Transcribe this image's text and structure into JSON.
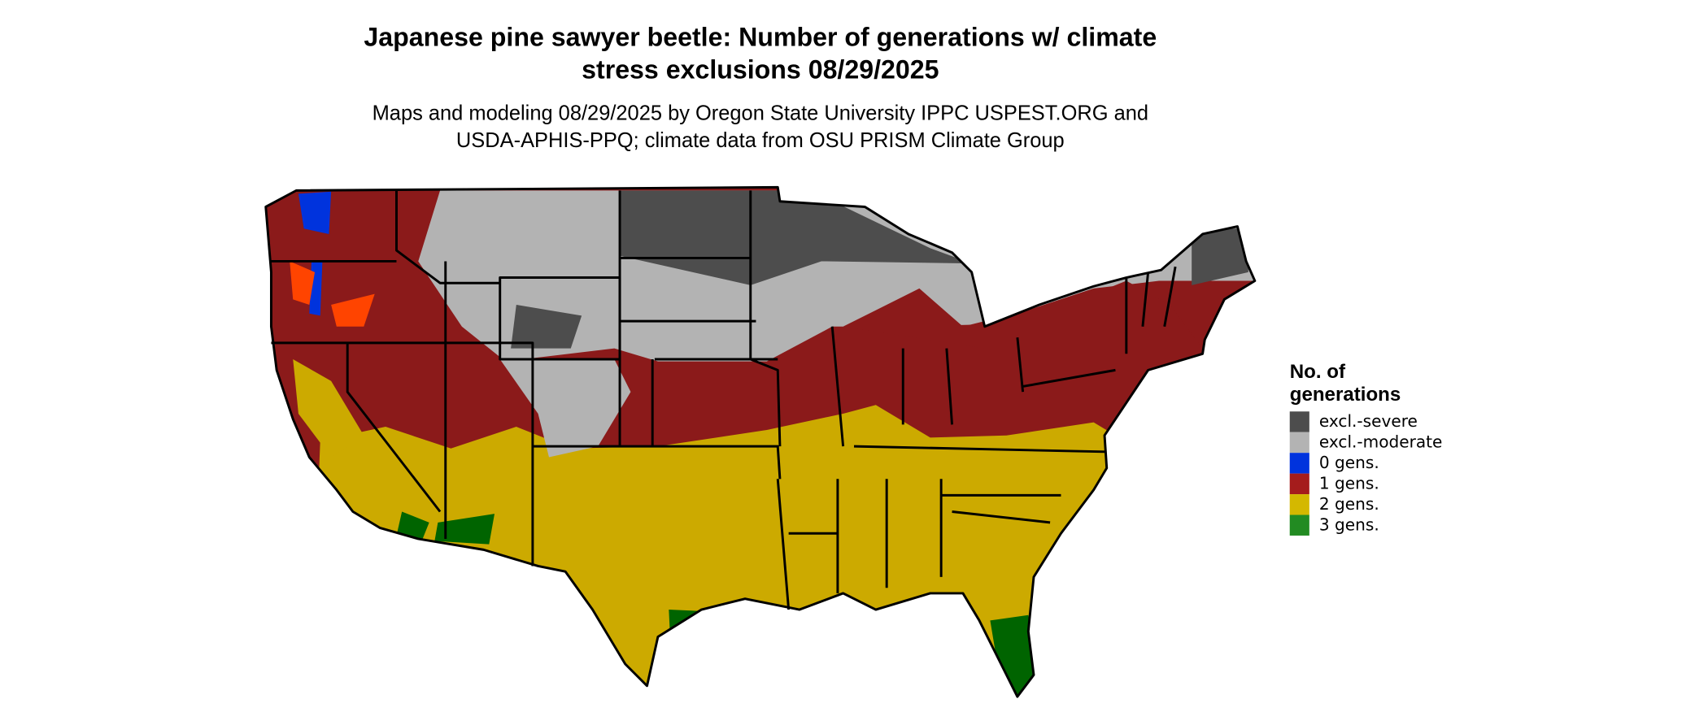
{
  "title_lines": [
    "Japanese pine sawyer beetle: Number of generations w/ climate",
    "stress exclusions 08/29/2025"
  ],
  "subtitle_lines": [
    "Maps and modeling 08/29/2025 by Oregon State University IPPC USPEST.ORG and",
    "USDA-APHIS-PPQ; climate data from OSU PRISM Climate Group"
  ],
  "legend": {
    "title_lines": [
      "No. of",
      "generations"
    ],
    "items": [
      {
        "label": "excl.-severe",
        "color": "#4d4d4d"
      },
      {
        "label": "excl.-moderate",
        "color": "#b3b3b3"
      },
      {
        "label": "0 gens.",
        "color": "#0033dd"
      },
      {
        "label": "1 gens.",
        "color": "#a51c1c"
      },
      {
        "label": "2 gens.",
        "color": "#d4b800"
      },
      {
        "label": "3 gens.",
        "color": "#228b22"
      }
    ]
  }
}
